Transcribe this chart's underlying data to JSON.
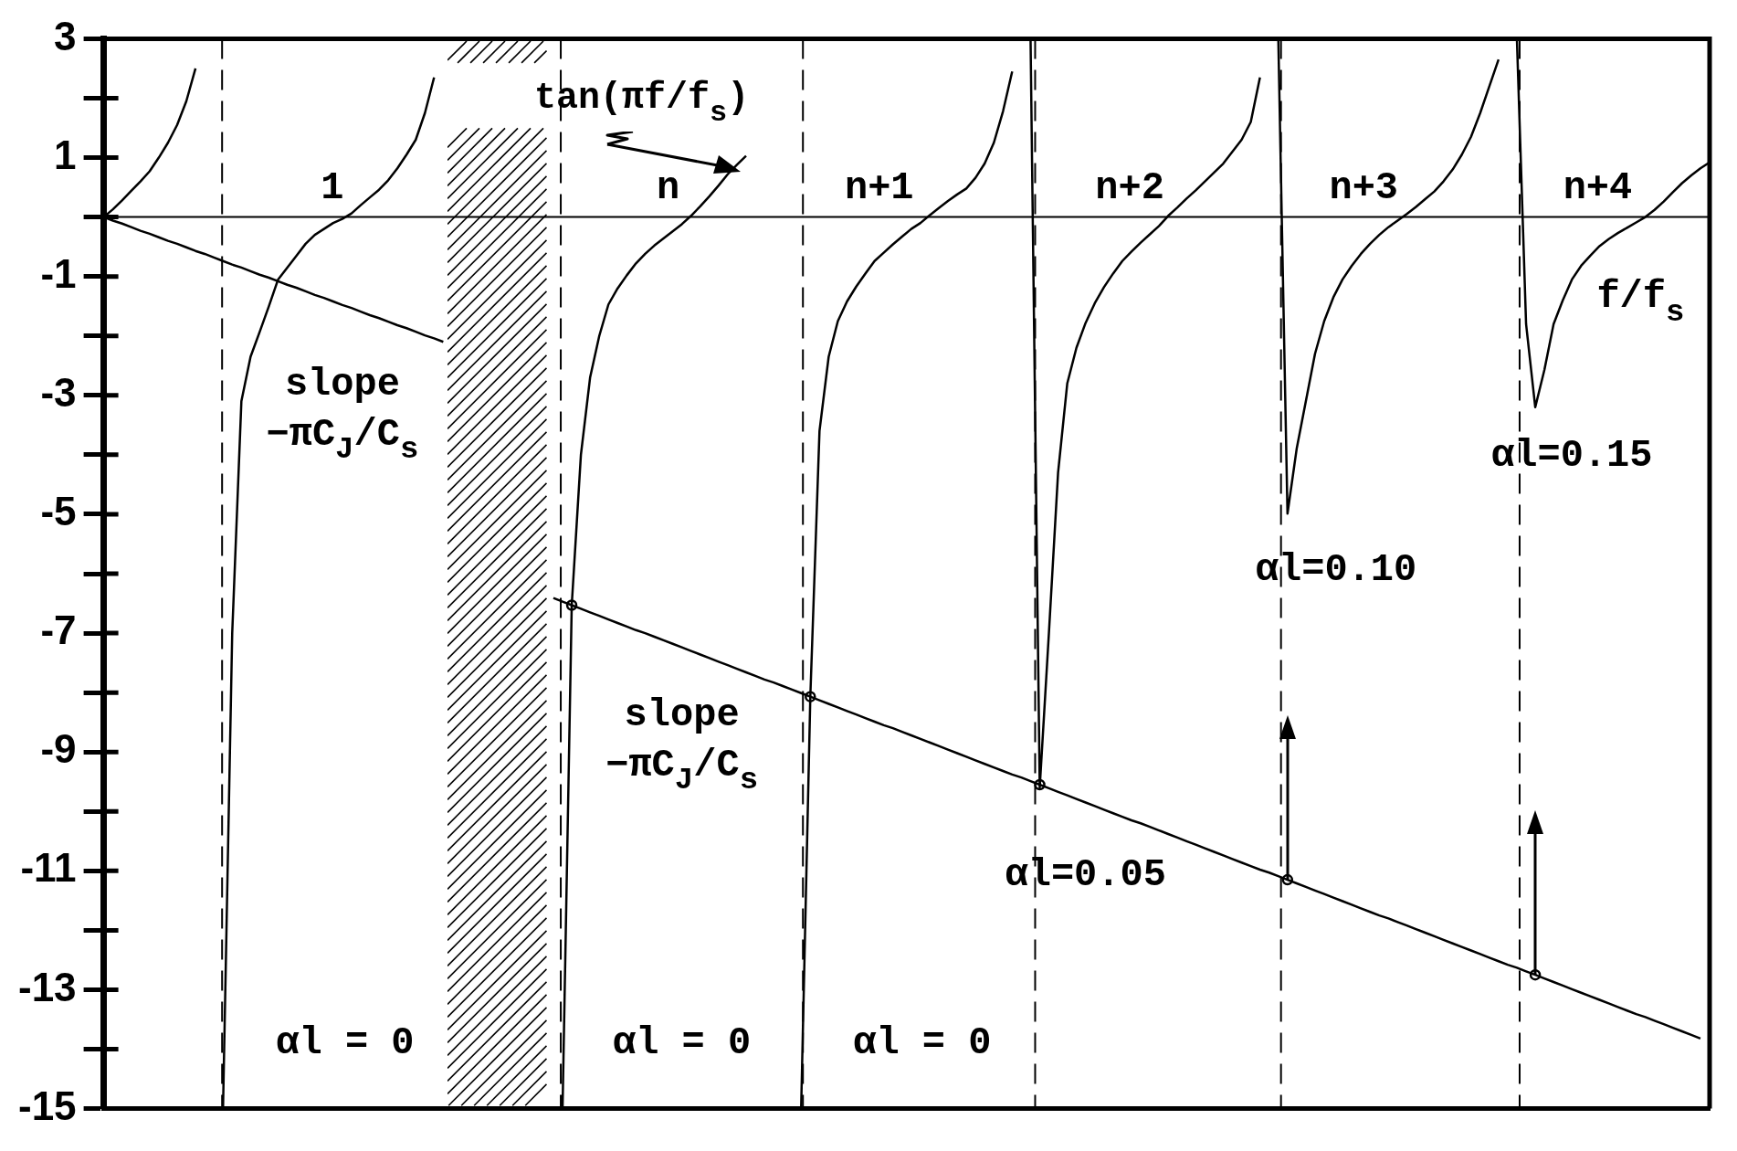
{
  "chart_data": {
    "type": "line",
    "categories": [
      null,
      null,
      null,
      null,
      null,
      null,
      null,
      null,
      null,
      null,
      null,
      null,
      null,
      null,
      null,
      null,
      null,
      null,
      null,
      null,
      null,
      null,
      null,
      null,
      null,
      null,
      null,
      null,
      null,
      null,
      null,
      null,
      null,
      null,
      null,
      null,
      null,
      null,
      null,
      null,
      null,
      null,
      null,
      null,
      null,
      null,
      null,
      null,
      null,
      null,
      null,
      null,
      null,
      null,
      null,
      null,
      null,
      null,
      null,
      null,
      null,
      null,
      null,
      null,
      null,
      null,
      null,
      null,
      null,
      null,
      null,
      null,
      null,
      null,
      null,
      null,
      null,
      null,
      null,
      null,
      null,
      null,
      null,
      null,
      null,
      null,
      null,
      null,
      null,
      null,
      null,
      null,
      null,
      null,
      null,
      null,
      null,
      null,
      null,
      null,
      null,
      null,
      null,
      null,
      null,
      null,
      null,
      null,
      null,
      null,
      null,
      null,
      null,
      null,
      null,
      null,
      null,
      null,
      null,
      null,
      null,
      null,
      null,
      null,
      null,
      null,
      null,
      null,
      null,
      null,
      null,
      null,
      null,
      null,
      null,
      null,
      null,
      null,
      null,
      null,
      null,
      null,
      null,
      null,
      null,
      null,
      null,
      null,
      null,
      null,
      null,
      null,
      null,
      null,
      null,
      null,
      null,
      null,
      null,
      null,
      null,
      null,
      null,
      null,
      null,
      null,
      null,
      null,
      null,
      null,
      null,
      null,
      null,
      null,
      null,
      null
    ],
    "ylim": [
      -15,
      3
    ],
    "yticks": [
      -15,
      {
        "value": -14,
        "label": null
      },
      -13,
      {
        "value": -12,
        "label": null
      },
      -11,
      {
        "value": -10,
        "label": null
      },
      -9,
      {
        "value": -8,
        "label": null
      },
      -7,
      {
        "value": -6,
        "label": null
      },
      -5,
      {
        "value": -4,
        "label": null
      },
      -3,
      {
        "value": -2,
        "label": null
      },
      -1,
      {
        "value": 0,
        "label": null
      },
      1,
      {
        "value": 2,
        "label": null
      },
      3
    ],
    "tick_labels": "y",
    "grid": false,
    "marker": "none",
    "line_style": "solid",
    "series": [
      {
        "color": "#000000",
        "values": [
          0,
          0.13,
          0.28,
          0.44,
          0.6,
          0.77,
          1.0,
          1.25,
          1.55,
          1.95,
          2.5,
          null,
          null,
          null,
          null,
          null,
          null,
          null,
          null,
          null,
          null,
          null,
          null,
          null,
          null,
          null,
          null,
          null,
          null,
          null,
          null,
          null,
          null,
          null,
          null,
          null,
          null,
          null,
          null,
          null,
          null,
          null,
          null,
          null,
          null,
          null,
          null,
          null,
          null,
          null,
          null,
          null,
          null,
          null,
          null,
          null,
          null,
          null,
          null,
          null,
          null,
          null,
          null,
          null,
          null,
          null,
          null,
          null,
          null,
          null,
          null,
          null,
          null,
          null,
          null,
          null,
          null,
          null,
          null,
          null,
          null,
          null,
          null,
          null,
          null,
          null,
          null,
          null,
          null,
          null,
          null,
          null,
          null,
          null,
          null,
          null,
          null,
          null,
          null,
          null,
          null,
          null,
          null,
          null,
          null,
          null,
          null,
          null,
          null,
          null,
          null,
          null,
          null,
          null,
          null,
          null,
          null,
          null,
          null,
          null,
          null,
          null,
          null,
          null,
          null,
          null,
          null,
          null,
          null,
          null,
          null,
          null,
          null,
          null,
          null,
          null,
          null,
          null,
          null,
          null,
          null,
          null,
          null,
          null,
          null,
          null,
          null,
          null,
          null,
          null,
          null,
          null,
          null,
          null,
          null,
          null,
          null,
          null,
          null,
          null,
          null,
          null,
          null,
          null,
          null,
          null,
          null,
          null,
          null,
          null,
          null,
          null,
          null,
          null,
          null,
          null
        ]
      },
      {
        "color": "#000000",
        "values": [
          null,
          null,
          null,
          null,
          null,
          null,
          null,
          null,
          null,
          null,
          null,
          null,
          null,
          -15,
          -7,
          -3.1,
          -2.35,
          -1.93,
          -1.5,
          -1.05,
          -0.85,
          -0.65,
          -0.45,
          -0.3,
          -0.2,
          -0.1,
          -0.03,
          0.06,
          0.2,
          0.33,
          0.46,
          0.62,
          0.82,
          1.05,
          1.3,
          1.75,
          2.35,
          null,
          null,
          null,
          null,
          null,
          null,
          null,
          null,
          null,
          null,
          null,
          null,
          null,
          null,
          null,
          null,
          null,
          null,
          null,
          null,
          null,
          null,
          null,
          null,
          null,
          null,
          null,
          null,
          null,
          null,
          null,
          null,
          null,
          null,
          null,
          null,
          null,
          null,
          null,
          null,
          null,
          null,
          null,
          null,
          null,
          null,
          null,
          null,
          null,
          null,
          null,
          null,
          null,
          null,
          null,
          null,
          null,
          null,
          null,
          null,
          null,
          null,
          null,
          null,
          null,
          null,
          null,
          null,
          null,
          null,
          null,
          null,
          null,
          null,
          null,
          null,
          null,
          null,
          null,
          null,
          null,
          null,
          null,
          null,
          null,
          null,
          null,
          null,
          null,
          null,
          null,
          null,
          null,
          null,
          null,
          null,
          null,
          null,
          null,
          null,
          null,
          null,
          null,
          null,
          null,
          null,
          null,
          null,
          null,
          null,
          null,
          null,
          null,
          null,
          null,
          null,
          null,
          null,
          null,
          null,
          null,
          null,
          null,
          null,
          null,
          null,
          null,
          null,
          null,
          null,
          null,
          null,
          null,
          null,
          null,
          null,
          null,
          null,
          null
        ]
      },
      {
        "color": "#000000",
        "values": [
          null,
          null,
          null,
          null,
          null,
          null,
          null,
          null,
          null,
          null,
          null,
          null,
          null,
          null,
          null,
          null,
          null,
          null,
          null,
          null,
          null,
          null,
          null,
          null,
          null,
          null,
          null,
          null,
          null,
          null,
          null,
          null,
          null,
          null,
          null,
          null,
          null,
          null,
          null,
          null,
          null,
          null,
          null,
          null,
          null,
          null,
          null,
          null,
          null,
          null,
          -15,
          -6.53,
          -4.0,
          -2.7,
          -2.0,
          -1.47,
          -1.2,
          -0.98,
          -0.78,
          -0.62,
          -0.48,
          -0.36,
          -0.24,
          -0.12,
          0.02,
          0.18,
          0.35,
          0.53,
          0.72,
          0.88,
          1.03,
          null,
          null,
          null,
          null,
          null,
          null,
          null,
          null,
          null,
          null,
          null,
          null,
          null,
          null,
          null,
          null,
          null,
          null,
          null,
          null,
          null,
          null,
          null,
          null,
          null,
          null,
          null,
          null,
          null,
          null,
          null,
          null,
          null,
          null,
          null,
          null,
          null,
          null,
          null,
          null,
          null,
          null,
          null,
          null,
          null,
          null,
          null,
          null,
          null,
          null,
          null,
          null,
          null,
          null,
          null,
          null,
          null,
          null,
          null,
          null,
          null,
          null,
          null,
          null,
          null,
          null,
          null,
          null,
          null,
          null,
          null,
          null,
          null,
          null,
          null,
          null,
          null,
          null,
          null,
          null,
          null,
          null,
          null,
          null,
          null,
          null,
          null,
          null,
          null,
          null,
          null,
          null,
          null,
          null,
          null,
          null,
          null,
          null,
          null,
          null,
          null,
          null,
          null,
          null,
          null
        ]
      },
      {
        "color": "#000000",
        "values": [
          null,
          null,
          null,
          null,
          null,
          null,
          null,
          null,
          null,
          null,
          null,
          null,
          null,
          null,
          null,
          null,
          null,
          null,
          null,
          null,
          null,
          null,
          null,
          null,
          null,
          null,
          null,
          null,
          null,
          null,
          null,
          null,
          null,
          null,
          null,
          null,
          null,
          null,
          null,
          null,
          null,
          null,
          null,
          null,
          null,
          null,
          null,
          null,
          null,
          null,
          null,
          null,
          null,
          null,
          null,
          null,
          null,
          null,
          null,
          null,
          null,
          null,
          null,
          null,
          null,
          null,
          null,
          null,
          null,
          null,
          null,
          null,
          null,
          null,
          null,
          null,
          -15,
          -8.07,
          -3.6,
          -2.35,
          -1.75,
          -1.42,
          -1.17,
          -0.95,
          -0.74,
          -0.6,
          -0.46,
          -0.33,
          -0.2,
          -0.1,
          0.03,
          0.15,
          0.27,
          0.38,
          0.48,
          0.66,
          0.9,
          1.25,
          1.78,
          2.45,
          null,
          null,
          null,
          null,
          null,
          null,
          null,
          null,
          null,
          null,
          null,
          null,
          null,
          null,
          null,
          null,
          null,
          null,
          null,
          null,
          null,
          null,
          null,
          null,
          null,
          null,
          null,
          null,
          null,
          null,
          null,
          null,
          null,
          null,
          null,
          null,
          null,
          null,
          null,
          null,
          null,
          null,
          null,
          null,
          null,
          null,
          null,
          null,
          null,
          null,
          null,
          null,
          null,
          null,
          null,
          null,
          null,
          null,
          null,
          null,
          null,
          null,
          null,
          null,
          null,
          null,
          null,
          null,
          null,
          null,
          null,
          null,
          null,
          null,
          null,
          null
        ]
      },
      {
        "color": "#000000",
        "values": [
          null,
          null,
          null,
          null,
          null,
          null,
          null,
          null,
          null,
          null,
          null,
          null,
          null,
          null,
          null,
          null,
          null,
          null,
          null,
          null,
          null,
          null,
          null,
          null,
          null,
          null,
          null,
          null,
          null,
          null,
          null,
          null,
          null,
          null,
          null,
          null,
          null,
          null,
          null,
          null,
          null,
          null,
          null,
          null,
          null,
          null,
          null,
          null,
          null,
          null,
          null,
          null,
          null,
          null,
          null,
          null,
          null,
          null,
          null,
          null,
          null,
          null,
          null,
          null,
          null,
          null,
          null,
          null,
          null,
          null,
          null,
          null,
          null,
          null,
          null,
          null,
          null,
          null,
          null,
          null,
          null,
          null,
          null,
          null,
          null,
          null,
          null,
          null,
          null,
          null,
          null,
          null,
          null,
          null,
          null,
          null,
          null,
          null,
          null,
          null,
          null,
          3,
          -9.6,
          -7.0,
          -4.3,
          -2.8,
          -2.2,
          -1.78,
          -1.45,
          -1.18,
          -0.95,
          -0.74,
          -0.58,
          -0.43,
          -0.29,
          -0.15,
          0.02,
          0.16,
          0.31,
          0.45,
          0.6,
          0.75,
          0.9,
          1.1,
          1.3,
          1.6,
          2.35,
          null,
          null,
          null,
          null,
          null,
          null,
          null,
          null,
          null,
          null,
          null,
          null,
          null,
          null,
          null,
          null,
          null,
          null,
          null,
          null,
          null,
          null,
          null,
          null,
          null,
          null,
          null,
          null,
          null,
          null,
          null,
          null,
          null,
          null,
          null,
          null,
          null,
          null,
          null,
          null,
          null,
          null,
          null,
          null,
          null,
          null,
          null,
          null,
          null
        ]
      },
      {
        "color": "#000000",
        "values": [
          null,
          null,
          null,
          null,
          null,
          null,
          null,
          null,
          null,
          null,
          null,
          null,
          null,
          null,
          null,
          null,
          null,
          null,
          null,
          null,
          null,
          null,
          null,
          null,
          null,
          null,
          null,
          null,
          null,
          null,
          null,
          null,
          null,
          null,
          null,
          null,
          null,
          null,
          null,
          null,
          null,
          null,
          null,
          null,
          null,
          null,
          null,
          null,
          null,
          null,
          null,
          null,
          null,
          null,
          null,
          null,
          null,
          null,
          null,
          null,
          null,
          null,
          null,
          null,
          null,
          null,
          null,
          null,
          null,
          null,
          null,
          null,
          null,
          null,
          null,
          null,
          null,
          null,
          null,
          null,
          null,
          null,
          null,
          null,
          null,
          null,
          null,
          null,
          null,
          null,
          null,
          null,
          null,
          null,
          null,
          null,
          null,
          null,
          null,
          null,
          null,
          null,
          null,
          null,
          null,
          null,
          null,
          null,
          null,
          null,
          null,
          null,
          null,
          null,
          null,
          null,
          null,
          null,
          null,
          null,
          null,
          null,
          null,
          null,
          null,
          null,
          null,
          null,
          3,
          -4.99,
          -3.9,
          -3.1,
          -2.3,
          -1.75,
          -1.35,
          -1.05,
          -0.82,
          -0.62,
          -0.45,
          -0.3,
          -0.17,
          -0.06,
          0.05,
          0.17,
          0.3,
          0.43,
          0.6,
          0.8,
          1.05,
          1.35,
          1.75,
          2.2,
          2.65,
          null,
          null,
          null,
          null,
          null,
          null,
          null,
          null,
          null,
          null,
          null,
          null,
          null,
          null,
          null,
          null,
          null,
          null,
          null,
          null,
          null,
          null,
          null
        ]
      },
      {
        "color": "#000000",
        "values": [
          null,
          null,
          null,
          null,
          null,
          null,
          null,
          null,
          null,
          null,
          null,
          null,
          null,
          null,
          null,
          null,
          null,
          null,
          null,
          null,
          null,
          null,
          null,
          null,
          null,
          null,
          null,
          null,
          null,
          null,
          null,
          null,
          null,
          null,
          null,
          null,
          null,
          null,
          null,
          null,
          null,
          null,
          null,
          null,
          null,
          null,
          null,
          null,
          null,
          null,
          null,
          null,
          null,
          null,
          null,
          null,
          null,
          null,
          null,
          null,
          null,
          null,
          null,
          null,
          null,
          null,
          null,
          null,
          null,
          null,
          null,
          null,
          null,
          null,
          null,
          null,
          null,
          null,
          null,
          null,
          null,
          null,
          null,
          null,
          null,
          null,
          null,
          null,
          null,
          null,
          null,
          null,
          null,
          null,
          null,
          null,
          null,
          null,
          null,
          null,
          null,
          null,
          null,
          null,
          null,
          null,
          null,
          null,
          null,
          null,
          null,
          null,
          null,
          null,
          null,
          null,
          null,
          null,
          null,
          null,
          null,
          null,
          null,
          null,
          null,
          null,
          null,
          null,
          null,
          null,
          null,
          null,
          null,
          null,
          null,
          null,
          null,
          null,
          null,
          null,
          null,
          null,
          null,
          null,
          null,
          null,
          null,
          null,
          null,
          null,
          null,
          null,
          null,
          null,
          3,
          -1.8,
          -3.2,
          -2.57,
          -1.8,
          -1.4,
          -1.05,
          -0.82,
          -0.65,
          -0.49,
          -0.37,
          -0.27,
          -0.18,
          -0.09,
          0.0,
          0.12,
          0.26,
          0.42,
          0.57,
          0.7,
          0.82,
          0.92
        ]
      },
      {
        "color": "#000000",
        "values": [
          0,
          -0.06,
          -0.11,
          -0.17,
          -0.23,
          -0.28,
          -0.34,
          -0.4,
          -0.45,
          -0.51,
          -0.57,
          -0.62,
          -0.68,
          -0.74,
          -0.8,
          -0.85,
          -0.91,
          -0.97,
          -1.02,
          -1.08,
          -1.14,
          -1.19,
          -1.25,
          -1.31,
          -1.36,
          -1.42,
          -1.48,
          -1.53,
          -1.59,
          -1.65,
          -1.7,
          -1.76,
          -1.82,
          -1.87,
          -1.93,
          -1.99,
          -2.04,
          -2.1,
          null,
          null,
          null,
          null,
          null,
          null,
          null,
          null,
          null,
          null,
          null,
          null,
          null,
          null,
          null,
          null,
          null,
          null,
          null,
          null,
          null,
          null,
          null,
          null,
          null,
          null,
          null,
          null,
          null,
          null,
          null,
          null,
          null,
          null,
          null,
          null,
          null,
          null,
          null,
          null,
          null,
          null,
          null,
          null,
          null,
          null,
          null,
          null,
          null,
          null,
          null,
          null,
          null,
          null,
          null,
          null,
          null,
          null,
          null,
          null,
          null,
          null,
          null,
          null,
          null,
          null,
          null,
          null,
          null,
          null,
          null,
          null,
          null,
          null,
          null,
          null,
          null,
          null,
          null,
          null,
          null,
          null,
          null,
          null,
          null,
          null,
          null,
          null,
          null,
          null,
          null,
          null,
          null,
          null,
          null,
          null,
          null,
          null,
          null,
          null,
          null,
          null,
          null,
          null,
          null,
          null,
          null,
          null,
          null,
          null,
          null,
          null,
          null,
          null,
          null,
          null,
          null,
          null,
          null,
          null,
          null,
          null,
          null,
          null,
          null,
          null,
          null,
          null,
          null,
          null,
          null,
          null,
          null,
          null,
          null,
          null,
          null,
          null
        ]
      },
      {
        "color": "#000000",
        "values": [
          null,
          null,
          null,
          null,
          null,
          null,
          null,
          null,
          null,
          null,
          null,
          null,
          null,
          null,
          null,
          null,
          null,
          null,
          null,
          null,
          null,
          null,
          null,
          null,
          null,
          null,
          null,
          null,
          null,
          null,
          null,
          null,
          null,
          null,
          null,
          null,
          null,
          null,
          null,
          null,
          null,
          null,
          null,
          null,
          null,
          null,
          null,
          null,
          null,
          -6.41,
          -6.47,
          -6.53,
          -6.59,
          -6.65,
          -6.71,
          -6.77,
          -6.83,
          -6.89,
          -6.95,
          -7.0,
          -7.06,
          -7.12,
          -7.18,
          -7.24,
          -7.3,
          -7.36,
          -7.42,
          -7.48,
          -7.54,
          -7.6,
          -7.66,
          -7.72,
          -7.78,
          -7.83,
          -7.89,
          -7.95,
          -8.01,
          -8.07,
          -8.13,
          -8.19,
          -8.25,
          -8.31,
          -8.37,
          -8.43,
          -8.49,
          -8.55,
          -8.6,
          -8.66,
          -8.72,
          -8.78,
          -8.84,
          -8.9,
          -8.96,
          -9.02,
          -9.08,
          -9.14,
          -9.2,
          -9.26,
          -9.32,
          -9.38,
          -9.43,
          -9.49,
          -9.55,
          -9.61,
          -9.67,
          -9.73,
          -9.79,
          -9.85,
          -9.91,
          -9.97,
          -10.03,
          -10.09,
          -10.15,
          -10.2,
          -10.26,
          -10.32,
          -10.38,
          -10.44,
          -10.5,
          -10.56,
          -10.62,
          -10.68,
          -10.74,
          -10.8,
          -10.86,
          -10.92,
          -10.98,
          -11.03,
          -11.09,
          -11.15,
          -11.21,
          -11.27,
          -11.33,
          -11.39,
          -11.45,
          -11.51,
          -11.57,
          -11.63,
          -11.69,
          -11.75,
          -11.8,
          -11.86,
          -11.92,
          -11.98,
          -12.04,
          -12.1,
          -12.16,
          -12.22,
          -12.28,
          -12.34,
          -12.4,
          -12.46,
          -12.52,
          -12.58,
          -12.63,
          -12.69,
          -12.75,
          -12.81,
          -12.87,
          -12.93,
          -12.99,
          -13.05,
          -13.11,
          -13.17,
          -13.23,
          -13.29,
          -13.35,
          -13.41,
          -13.46,
          -13.52,
          -13.58,
          -13.64,
          -13.7,
          -13.76,
          -13.82,
          null
        ]
      },
      {
        "type": "scatter",
        "marker": "circle",
        "color": "#000000",
        "values": [
          null,
          null,
          null,
          null,
          null,
          null,
          null,
          null,
          null,
          null,
          null,
          null,
          null,
          null,
          null,
          null,
          null,
          null,
          null,
          null,
          null,
          null,
          null,
          null,
          null,
          null,
          null,
          null,
          null,
          null,
          null,
          null,
          null,
          null,
          null,
          null,
          null,
          null,
          null,
          null,
          null,
          null,
          null,
          null,
          null,
          null,
          null,
          null,
          null,
          null,
          null,
          -6.53,
          null,
          null,
          null,
          null,
          null,
          null,
          null,
          null,
          null,
          null,
          null,
          null,
          null,
          null,
          null,
          null,
          null,
          null,
          null,
          null,
          null,
          null,
          null,
          null,
          null,
          -8.07,
          null,
          null,
          null,
          null,
          null,
          null,
          null,
          null,
          null,
          null,
          null,
          null,
          null,
          null,
          null,
          null,
          null,
          null,
          null,
          null,
          null,
          null,
          null,
          null,
          -9.55,
          null,
          null,
          null,
          null,
          null,
          null,
          null,
          null,
          null,
          null,
          null,
          null,
          null,
          null,
          null,
          null,
          null,
          null,
          null,
          null,
          null,
          null,
          null,
          null,
          null,
          null,
          -11.15,
          null,
          null,
          null,
          null,
          null,
          null,
          null,
          null,
          null,
          null,
          null,
          null,
          null,
          null,
          null,
          null,
          null,
          null,
          null,
          null,
          null,
          null,
          null,
          null,
          null,
          null,
          -12.75,
          null,
          null,
          null,
          null,
          null,
          null,
          null,
          null,
          null,
          null,
          null,
          null,
          null,
          null,
          null,
          null,
          null,
          null,
          null
        ]
      }
    ],
    "ref_lines": [
      {
        "axis": "y",
        "value": 0,
        "color": "#000000",
        "line_style": "solid"
      },
      {
        "axis": "x",
        "color": "#000000",
        "line_style": "dashed"
      },
      {
        "axis": "x",
        "color": "#000000",
        "line_style": "dashed"
      },
      {
        "axis": "x",
        "color": "#000000",
        "line_style": "dashed"
      },
      {
        "axis": "x",
        "color": "#000000",
        "line_style": "dashed"
      },
      {
        "axis": "x",
        "color": "#000000",
        "line_style": "dashed"
      },
      {
        "axis": "x",
        "color": "#000000",
        "line_style": "dashed"
      }
    ],
    "annotations": [
      "tan(πf/f$_{s}$)",
      "1",
      "n",
      "n+1",
      "n+2",
      "n+3",
      "n+4",
      "f/f$_{s}$",
      "slope\n−πC$_{J}$/C$_{s}$",
      "slope\n−πC$_{J}$/C$_{s}$",
      "αl = 0",
      "αl = 0",
      "αl = 0",
      "αl=0.05",
      "αl=0.10",
      "αl=0.15"
    ]
  }
}
